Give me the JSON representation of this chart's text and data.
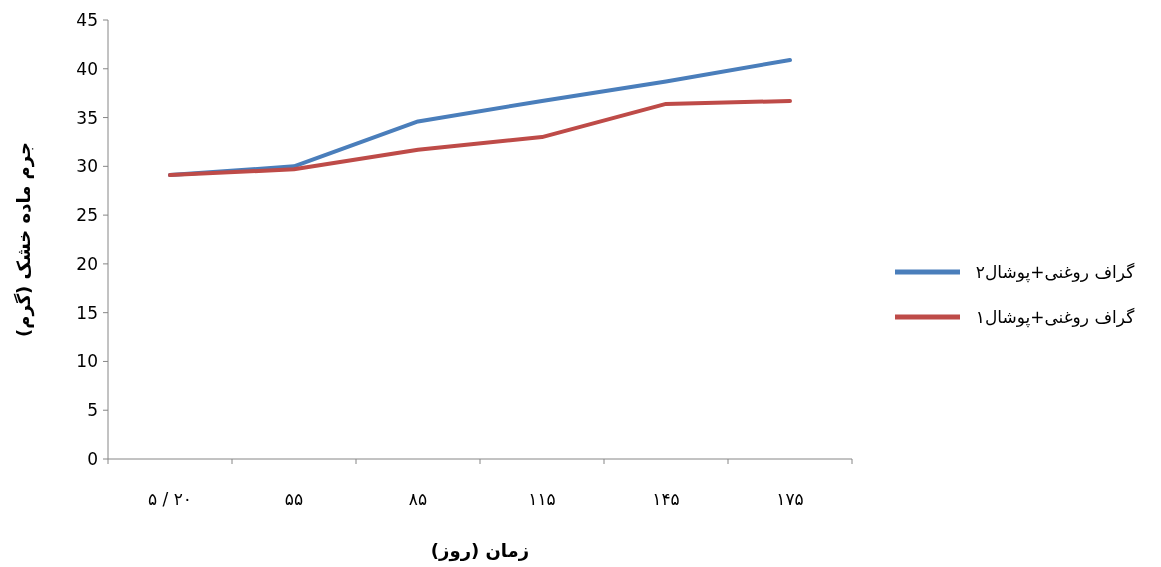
{
  "chart_data": {
    "type": "line",
    "xlabel": "زمان (روز)",
    "ylabel": "جرم ماده خشک (گرم)",
    "categories": [
      "۵ / ۲۰",
      "۵۵",
      "۸۵",
      "۱۱۵",
      "۱۴۵",
      "۱۷۵"
    ],
    "series": [
      {
        "name": "گراف روغنی+پوشال۲",
        "color": "#4a7ebb",
        "values": [
          29.1,
          30.0,
          34.6,
          36.7,
          38.7,
          40.9
        ]
      },
      {
        "name": "گراف روغنی+پوشال۱",
        "color": "#be4b48",
        "values": [
          29.1,
          29.7,
          31.7,
          33.0,
          36.4,
          36.7
        ]
      }
    ],
    "ylim": [
      0,
      45
    ],
    "yticks": [
      0,
      5,
      10,
      15,
      20,
      25,
      30,
      35,
      40,
      45
    ],
    "grid": false,
    "legend": "right",
    "marker": "none",
    "line_style": "solid"
  }
}
